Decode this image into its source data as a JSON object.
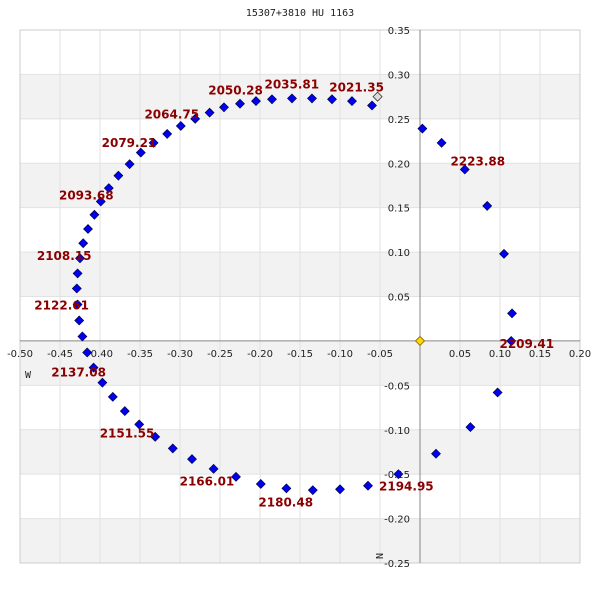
{
  "chart_data": {
    "type": "scatter",
    "title": "15307+3810 HU 1163",
    "xlim": [
      -0.5,
      0.2
    ],
    "ylim": [
      -0.25,
      0.35
    ],
    "xticks": [
      -0.5,
      -0.45,
      -0.4,
      -0.35,
      -0.3,
      -0.25,
      -0.2,
      -0.15,
      -0.1,
      -0.05,
      0.05,
      0.1,
      0.15,
      0.2
    ],
    "xtick_labels": [
      "-0.50",
      "-0.45",
      "-0.40",
      "-0.35",
      "-0.30",
      "-0.25",
      "-0.20",
      "-0.15",
      "-0.10",
      "-0.05",
      "0.05",
      "0.10",
      "0.15",
      "0.20"
    ],
    "yticks": [
      0.35,
      0.3,
      0.25,
      0.2,
      0.15,
      0.1,
      0.05,
      -0.05,
      -0.1,
      -0.15,
      -0.2,
      -0.25
    ],
    "ytick_labels": [
      "0.35",
      "0.30",
      "0.25",
      "0.20",
      "0.15",
      "0.10",
      "0.05",
      "-0.05",
      "-0.10",
      "-0.15",
      "-0.20",
      "-0.25"
    ],
    "axis_letters": {
      "west": "W",
      "north": "N"
    },
    "grid": true,
    "colors": {
      "points": "#0000ee",
      "point_stroke": "#000033",
      "primary": "#ffd700",
      "start": "#dcdcdc",
      "labels": "#8b0000",
      "band": "#f2f2f2"
    },
    "orbit_points": [
      [
        -0.06,
        0.265
      ],
      [
        -0.085,
        0.27
      ],
      [
        -0.11,
        0.272
      ],
      [
        -0.135,
        0.273
      ],
      [
        -0.16,
        0.273
      ],
      [
        -0.185,
        0.272
      ],
      [
        -0.205,
        0.27
      ],
      [
        -0.225,
        0.267
      ],
      [
        -0.245,
        0.263
      ],
      [
        -0.263,
        0.257
      ],
      [
        -0.281,
        0.25
      ],
      [
        -0.299,
        0.242
      ],
      [
        -0.316,
        0.233
      ],
      [
        -0.333,
        0.223
      ],
      [
        -0.349,
        0.212
      ],
      [
        -0.363,
        0.199
      ],
      [
        -0.377,
        0.186
      ],
      [
        -0.389,
        0.172
      ],
      [
        -0.399,
        0.157
      ],
      [
        -0.407,
        0.142
      ],
      [
        -0.415,
        0.126
      ],
      [
        -0.421,
        0.11
      ],
      [
        -0.425,
        0.093
      ],
      [
        -0.428,
        0.076
      ],
      [
        -0.429,
        0.059
      ],
      [
        -0.428,
        0.041
      ],
      [
        -0.426,
        0.023
      ],
      [
        -0.422,
        0.005
      ],
      [
        -0.416,
        -0.013
      ],
      [
        -0.408,
        -0.03
      ],
      [
        -0.397,
        -0.047
      ],
      [
        -0.384,
        -0.063
      ],
      [
        -0.369,
        -0.079
      ],
      [
        -0.351,
        -0.094
      ],
      [
        -0.331,
        -0.108
      ],
      [
        -0.309,
        -0.121
      ],
      [
        -0.285,
        -0.133
      ],
      [
        -0.258,
        -0.144
      ],
      [
        -0.23,
        -0.153
      ],
      [
        -0.199,
        -0.161
      ],
      [
        -0.167,
        -0.166
      ],
      [
        -0.134,
        -0.168
      ],
      [
        -0.1,
        -0.167
      ],
      [
        -0.065,
        -0.163
      ],
      [
        -0.027,
        -0.15
      ],
      [
        0.02,
        -0.127
      ],
      [
        0.063,
        -0.097
      ],
      [
        0.097,
        -0.058
      ],
      [
        0.114,
        0.0
      ],
      [
        0.115,
        0.031
      ],
      [
        0.105,
        0.098
      ],
      [
        0.084,
        0.152
      ],
      [
        0.056,
        0.193
      ],
      [
        0.027,
        0.223
      ],
      [
        0.003,
        0.239
      ]
    ],
    "primary_star": [
      0.0,
      0.0
    ],
    "start_point": [
      -0.053,
      0.275
    ],
    "epoch_labels": [
      {
        "text": "2021.35",
        "x": -0.085,
        "y": 0.27
      },
      {
        "text": "2035.81",
        "x": -0.16,
        "y": 0.273
      },
      {
        "text": "2050.28",
        "x": -0.225,
        "y": 0.267
      },
      {
        "text": "2064.75",
        "x": -0.299,
        "y": 0.242
      },
      {
        "text": "2079.21",
        "x": -0.349,
        "y": 0.212
      },
      {
        "text": "2093.68",
        "x": -0.399,
        "y": 0.157
      },
      {
        "text": "2108.15",
        "x": -0.425,
        "y": 0.093
      },
      {
        "text": "2122.61",
        "x": -0.428,
        "y": 0.041
      },
      {
        "text": "2137.08",
        "x": -0.408,
        "y": -0.03
      },
      {
        "text": "2151.55",
        "x": -0.351,
        "y": -0.094
      },
      {
        "text": "2166.01",
        "x": -0.258,
        "y": -0.144
      },
      {
        "text": "2180.48",
        "x": -0.167,
        "y": -0.166
      },
      {
        "text": "2194.95",
        "x": -0.027,
        "y": -0.15
      },
      {
        "text": "2209.41",
        "x": 0.114,
        "y": 0.0
      },
      {
        "text": "2223.88",
        "x": 0.056,
        "y": 0.193
      }
    ]
  }
}
